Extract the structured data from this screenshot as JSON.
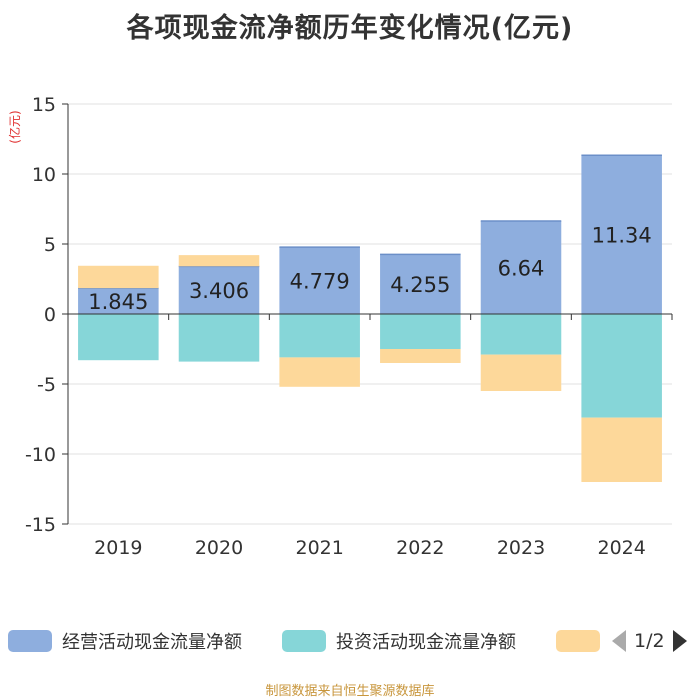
{
  "chart_data": {
    "type": "bar",
    "stacked": true,
    "title": "各项现金流净额历年变化情况(亿元)",
    "unit_label": "(亿元)",
    "categories": [
      "2019",
      "2020",
      "2021",
      "2022",
      "2023",
      "2024"
    ],
    "ylim": [
      -15,
      15
    ],
    "yticks": [
      15,
      10,
      5,
      0,
      -5,
      -10,
      -15
    ],
    "series": [
      {
        "name": "经营活动现金流量净额",
        "color": "#8eaede",
        "values": [
          1.845,
          3.406,
          4.779,
          4.255,
          6.64,
          11.34
        ],
        "labels": [
          "1.845",
          "3.406",
          "4.779",
          "4.255",
          "6.64",
          "11.34"
        ]
      },
      {
        "name": "投资活动现金流量净额",
        "color": "#86d6d8",
        "values": [
          -3.3,
          -3.4,
          -3.1,
          -2.5,
          -2.9,
          -7.4
        ]
      },
      {
        "name": "",
        "color": "#fdd89a",
        "values": [
          1.6,
          0.8,
          -2.1,
          -1.0,
          -2.6,
          -4.6
        ]
      }
    ],
    "legend_position": "bottom"
  },
  "legend": {
    "page": "1/2"
  },
  "source": "制图数据来自恒生聚源数据库"
}
